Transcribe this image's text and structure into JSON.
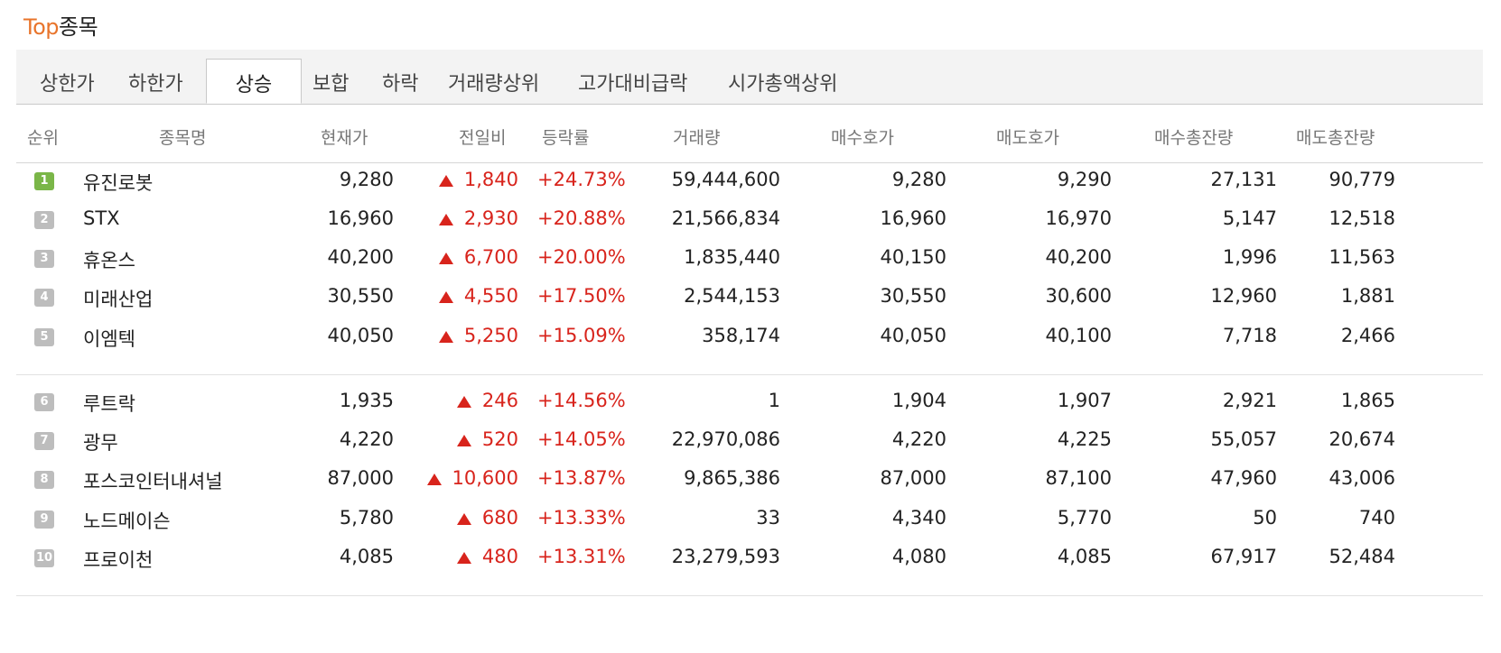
{
  "title": {
    "accent": "Top",
    "rest": "종목"
  },
  "tabs": [
    {
      "label": "상한가"
    },
    {
      "label": "하한가"
    },
    {
      "label": "상승",
      "active": true
    },
    {
      "label": "보합"
    },
    {
      "label": "하락"
    },
    {
      "label": "거래량상위"
    },
    {
      "label": "고가대비급락"
    },
    {
      "label": "시가총액상위"
    }
  ],
  "columns": {
    "rank": "순위",
    "name": "종목명",
    "price": "현재가",
    "change": "전일비",
    "rate": "등락률",
    "volume": "거래량",
    "bid": "매수호가",
    "ask": "매도호가",
    "bid_total": "매수총잔량",
    "ask_total": "매도총잔량"
  },
  "colors": {
    "up": "#d8241c",
    "accent": "#e8742b",
    "rank_first": "#7ab648",
    "rank_other": "#bdbdbd"
  },
  "change_icon": "up-triangle-icon",
  "rows": [
    {
      "rank": "1",
      "name": "유진로봇",
      "price": "9,280",
      "change": "1,840",
      "rate": "+24.73%",
      "volume": "59,444,600",
      "bid": "9,280",
      "ask": "9,290",
      "bid_total": "27,131",
      "ask_total": "90,779"
    },
    {
      "rank": "2",
      "name": "STX",
      "price": "16,960",
      "change": "2,930",
      "rate": "+20.88%",
      "volume": "21,566,834",
      "bid": "16,960",
      "ask": "16,970",
      "bid_total": "5,147",
      "ask_total": "12,518"
    },
    {
      "rank": "3",
      "name": "휴온스",
      "price": "40,200",
      "change": "6,700",
      "rate": "+20.00%",
      "volume": "1,835,440",
      "bid": "40,150",
      "ask": "40,200",
      "bid_total": "1,996",
      "ask_total": "11,563"
    },
    {
      "rank": "4",
      "name": "미래산업",
      "price": "30,550",
      "change": "4,550",
      "rate": "+17.50%",
      "volume": "2,544,153",
      "bid": "30,550",
      "ask": "30,600",
      "bid_total": "12,960",
      "ask_total": "1,881"
    },
    {
      "rank": "5",
      "name": "이엠텍",
      "price": "40,050",
      "change": "5,250",
      "rate": "+15.09%",
      "volume": "358,174",
      "bid": "40,050",
      "ask": "40,100",
      "bid_total": "7,718",
      "ask_total": "2,466"
    },
    {
      "rank": "6",
      "name": "루트락",
      "price": "1,935",
      "change": "246",
      "rate": "+14.56%",
      "volume": "1",
      "bid": "1,904",
      "ask": "1,907",
      "bid_total": "2,921",
      "ask_total": "1,865"
    },
    {
      "rank": "7",
      "name": "광무",
      "price": "4,220",
      "change": "520",
      "rate": "+14.05%",
      "volume": "22,970,086",
      "bid": "4,220",
      "ask": "4,225",
      "bid_total": "55,057",
      "ask_total": "20,674"
    },
    {
      "rank": "8",
      "name": "포스코인터내셔널",
      "price": "87,000",
      "change": "10,600",
      "rate": "+13.87%",
      "volume": "9,865,386",
      "bid": "87,000",
      "ask": "87,100",
      "bid_total": "47,960",
      "ask_total": "43,006"
    },
    {
      "rank": "9",
      "name": "노드메이슨",
      "price": "5,780",
      "change": "680",
      "rate": "+13.33%",
      "volume": "33",
      "bid": "4,340",
      "ask": "5,770",
      "bid_total": "50",
      "ask_total": "740"
    },
    {
      "rank": "10",
      "name": "프로이천",
      "price": "4,085",
      "change": "480",
      "rate": "+13.31%",
      "volume": "23,279,593",
      "bid": "4,080",
      "ask": "4,085",
      "bid_total": "67,917",
      "ask_total": "52,484"
    }
  ]
}
